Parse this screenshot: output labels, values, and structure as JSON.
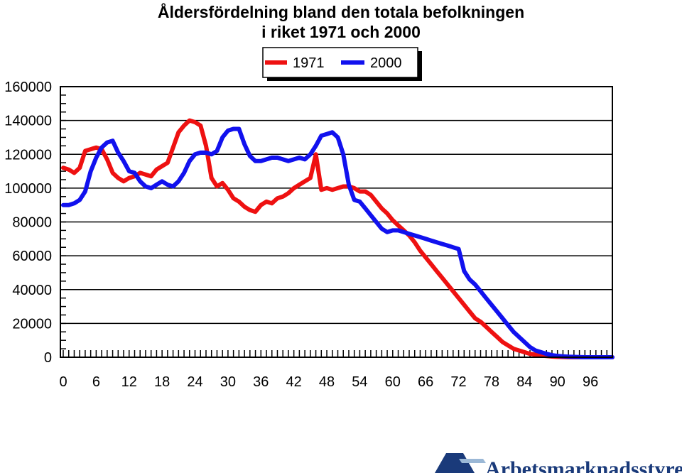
{
  "colors": {
    "series_1971": "#ee1111",
    "series_2000": "#1111ee",
    "logo": "#1a3a7a"
  },
  "logo": {
    "text": "Arbetsmarknadsstyrelsen",
    "icon": "ams-logo-icon"
  },
  "chart_data": {
    "type": "line",
    "title_lines": [
      "Åldersfördelning bland den totala befolkningen",
      "i riket 1971 och 2000"
    ],
    "xlabel": "",
    "ylabel": "",
    "xlim": [
      0,
      100
    ],
    "ylim": [
      0,
      160000
    ],
    "x_ticks": [
      0,
      6,
      12,
      18,
      24,
      30,
      36,
      42,
      48,
      54,
      60,
      66,
      72,
      78,
      84,
      90,
      96
    ],
    "y_ticks": [
      0,
      20000,
      40000,
      60000,
      80000,
      100000,
      120000,
      140000,
      160000
    ],
    "grid": {
      "horizontal": true,
      "vertical": false
    },
    "legend": "top-center",
    "series": [
      {
        "name": "1971",
        "x": [
          0,
          1,
          2,
          3,
          4,
          5,
          6,
          7,
          8,
          9,
          10,
          11,
          12,
          13,
          14,
          15,
          16,
          17,
          18,
          19,
          20,
          21,
          22,
          23,
          24,
          25,
          26,
          27,
          28,
          29,
          30,
          31,
          32,
          33,
          34,
          35,
          36,
          37,
          38,
          39,
          40,
          41,
          42,
          43,
          44,
          45,
          46,
          47,
          48,
          49,
          50,
          51,
          52,
          53,
          54,
          55,
          56,
          57,
          58,
          59,
          60,
          61,
          62,
          63,
          64,
          65,
          66,
          67,
          68,
          69,
          70,
          71,
          72,
          73,
          74,
          75,
          76,
          77,
          78,
          79,
          80,
          81,
          82,
          83,
          84,
          85,
          86,
          87,
          88,
          89,
          90,
          91,
          92,
          93,
          94,
          95,
          96,
          97,
          98,
          99,
          100
        ],
        "values": [
          112000,
          111000,
          109000,
          112000,
          122000,
          123000,
          124000,
          123000,
          117000,
          109000,
          106000,
          104000,
          106000,
          107000,
          109000,
          108000,
          107000,
          111000,
          113000,
          115000,
          124000,
          133000,
          137000,
          140000,
          139000,
          137000,
          125000,
          106000,
          101000,
          103000,
          99000,
          94000,
          92000,
          89000,
          87000,
          86000,
          90000,
          92000,
          91000,
          94000,
          95000,
          97000,
          100000,
          102000,
          104000,
          106000,
          120000,
          99000,
          100000,
          99000,
          100000,
          101000,
          101000,
          100000,
          98000,
          98000,
          96000,
          92000,
          88000,
          85000,
          81000,
          78000,
          75000,
          72000,
          68000,
          63000,
          59000,
          55000,
          51000,
          47000,
          43000,
          39000,
          35000,
          31000,
          27000,
          23000,
          21000,
          18000,
          15000,
          12000,
          9000,
          7000,
          5000,
          4000,
          3000,
          2000,
          1500,
          1000,
          700,
          400,
          200,
          100,
          0,
          0,
          0,
          0,
          0,
          0,
          0,
          0,
          0
        ]
      },
      {
        "name": "2000",
        "x": [
          0,
          1,
          2,
          3,
          4,
          5,
          6,
          7,
          8,
          9,
          10,
          11,
          12,
          13,
          14,
          15,
          16,
          17,
          18,
          19,
          20,
          21,
          22,
          23,
          24,
          25,
          26,
          27,
          28,
          29,
          30,
          31,
          32,
          33,
          34,
          35,
          36,
          37,
          38,
          39,
          40,
          41,
          42,
          43,
          44,
          45,
          46,
          47,
          48,
          49,
          50,
          51,
          52,
          53,
          54,
          55,
          56,
          57,
          58,
          59,
          60,
          61,
          62,
          63,
          64,
          65,
          66,
          67,
          68,
          69,
          70,
          71,
          72,
          73,
          74,
          75,
          76,
          77,
          78,
          79,
          80,
          81,
          82,
          83,
          84,
          85,
          86,
          87,
          88,
          89,
          90,
          91,
          92,
          93,
          94,
          95,
          96,
          97,
          98,
          99,
          100
        ],
        "values": [
          90000,
          90000,
          91000,
          93000,
          98000,
          110000,
          118000,
          124000,
          127000,
          128000,
          121000,
          116000,
          110000,
          109000,
          104000,
          101000,
          100000,
          102000,
          104000,
          102000,
          101000,
          104000,
          109000,
          116000,
          120000,
          121000,
          121000,
          120000,
          122000,
          130000,
          134000,
          135000,
          135000,
          126000,
          119000,
          116000,
          116000,
          117000,
          118000,
          118000,
          117000,
          116000,
          117000,
          118000,
          117000,
          120000,
          125000,
          131000,
          132000,
          133000,
          130000,
          120000,
          102000,
          93000,
          92000,
          88000,
          84000,
          80000,
          76000,
          74000,
          75000,
          75000,
          74000,
          73000,
          72000,
          71000,
          70000,
          69000,
          68000,
          67000,
          66000,
          65000,
          64000,
          51000,
          46000,
          43000,
          39000,
          35000,
          31000,
          27000,
          23000,
          19000,
          15000,
          12000,
          9000,
          6000,
          4000,
          3000,
          2000,
          1200,
          800,
          500,
          300,
          200,
          100,
          0,
          0,
          0,
          0,
          0,
          0
        ]
      }
    ]
  }
}
